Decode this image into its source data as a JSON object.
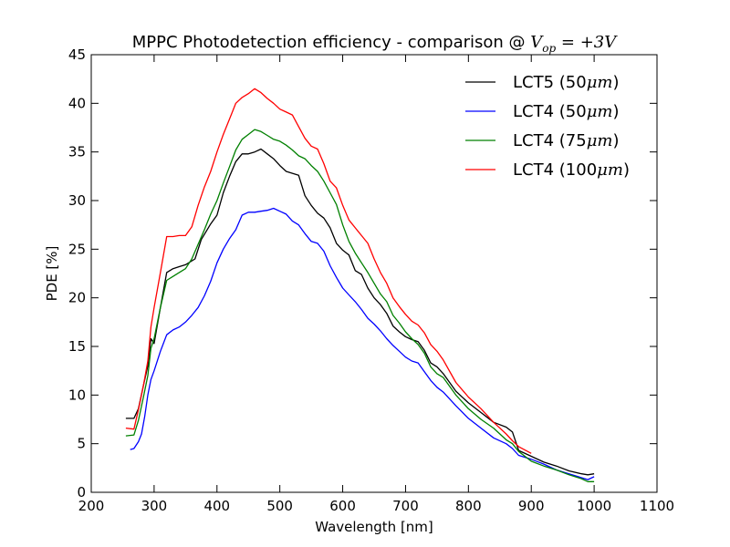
{
  "chart_data": {
    "type": "line",
    "title": {
      "prefix": "MPPC Photodetection efficiency - comparison @ ",
      "math": "V",
      "math_sub": "op",
      "suffix": " = +3V"
    },
    "xlabel": "Wavelength [nm]",
    "ylabel": "PDE [%]",
    "xlim": [
      200,
      1100
    ],
    "ylim": [
      0,
      45
    ],
    "xticks": [
      200,
      300,
      400,
      500,
      600,
      700,
      800,
      900,
      1000,
      1100
    ],
    "yticks": [
      0,
      5,
      10,
      15,
      20,
      25,
      30,
      35,
      40,
      45
    ],
    "grid": false,
    "legend_position": "top-right",
    "series": [
      {
        "name": "LCT5 (50μm)",
        "legend_prefix": "LCT5 (50",
        "legend_math": "μm",
        "legend_suffix": ")",
        "color": "#000000",
        "x": [
          255,
          268,
          275,
          283,
          290,
          295,
          300,
          310,
          320,
          330,
          340,
          350,
          365,
          375,
          390,
          400,
          410,
          420,
          430,
          440,
          450,
          460,
          470,
          480,
          490,
          500,
          510,
          520,
          530,
          540,
          550,
          560,
          570,
          580,
          590,
          600,
          610,
          620,
          630,
          640,
          650,
          660,
          670,
          680,
          690,
          700,
          710,
          720,
          730,
          740,
          750,
          760,
          780,
          800,
          820,
          840,
          860,
          870,
          880,
          900,
          920,
          940,
          960,
          980,
          990,
          1000
        ],
        "values": [
          7.6,
          7.6,
          8.6,
          11.0,
          13.0,
          15.8,
          15.3,
          19.0,
          22.6,
          23.0,
          23.2,
          23.4,
          24.0,
          26.0,
          27.6,
          28.5,
          30.8,
          32.5,
          34.0,
          34.8,
          34.8,
          35.0,
          35.3,
          34.8,
          34.3,
          33.6,
          33.0,
          32.8,
          32.6,
          30.5,
          29.5,
          28.7,
          28.2,
          27.2,
          25.6,
          24.9,
          24.4,
          22.8,
          22.4,
          21.0,
          20.0,
          19.3,
          18.4,
          17.1,
          16.5,
          16.0,
          15.7,
          15.5,
          14.6,
          13.3,
          12.9,
          12.2,
          10.4,
          9.2,
          8.2,
          7.2,
          6.7,
          6.2,
          4.3,
          3.7,
          3.1,
          2.7,
          2.2,
          1.9,
          1.8,
          1.9
        ]
      },
      {
        "name": "LCT4 (50μm)",
        "legend_prefix": "LCT4 (50",
        "legend_math": "μm",
        "legend_suffix": ")",
        "color": "#0000ff",
        "x": [
          262,
          268,
          275,
          280,
          285,
          290,
          295,
          300,
          310,
          320,
          330,
          340,
          350,
          360,
          370,
          380,
          390,
          400,
          410,
          420,
          430,
          440,
          450,
          460,
          470,
          480,
          490,
          500,
          510,
          520,
          530,
          540,
          550,
          560,
          570,
          580,
          590,
          600,
          610,
          620,
          630,
          640,
          650,
          660,
          670,
          680,
          690,
          700,
          710,
          720,
          730,
          740,
          750,
          760,
          780,
          800,
          820,
          840,
          860,
          870,
          880,
          900,
          920,
          940,
          960,
          980,
          990,
          1000
        ],
        "values": [
          4.4,
          4.5,
          5.2,
          6.0,
          7.8,
          10.0,
          11.6,
          12.5,
          14.5,
          16.2,
          16.7,
          17.0,
          17.5,
          18.2,
          19.0,
          20.2,
          21.7,
          23.6,
          25.0,
          26.1,
          27.0,
          28.5,
          28.8,
          28.8,
          28.9,
          29.0,
          29.2,
          28.9,
          28.6,
          27.9,
          27.5,
          26.6,
          25.8,
          25.6,
          24.8,
          23.3,
          22.1,
          21.0,
          20.3,
          19.6,
          18.8,
          17.9,
          17.3,
          16.6,
          15.8,
          15.1,
          14.5,
          13.9,
          13.5,
          13.3,
          12.4,
          11.5,
          10.8,
          10.3,
          8.9,
          7.6,
          6.6,
          5.6,
          5.0,
          4.5,
          3.8,
          3.4,
          2.9,
          2.3,
          1.9,
          1.5,
          1.3,
          1.6
        ]
      },
      {
        "name": "LCT4 (75μm)",
        "legend_prefix": "LCT4 (75",
        "legend_math": "μm",
        "legend_suffix": ")",
        "color": "#008000",
        "x": [
          255,
          268,
          275,
          283,
          290,
          295,
          300,
          310,
          320,
          330,
          340,
          350,
          360,
          370,
          380,
          390,
          400,
          410,
          420,
          430,
          440,
          450,
          460,
          470,
          480,
          490,
          500,
          510,
          520,
          530,
          540,
          550,
          560,
          570,
          580,
          590,
          600,
          610,
          620,
          630,
          640,
          650,
          660,
          670,
          680,
          690,
          700,
          710,
          720,
          730,
          740,
          750,
          760,
          780,
          800,
          820,
          840,
          860,
          870,
          880,
          900,
          920,
          940,
          960,
          980,
          990,
          1000
        ],
        "values": [
          5.8,
          5.9,
          7.4,
          9.8,
          12.0,
          14.8,
          15.8,
          19.0,
          21.8,
          22.2,
          22.6,
          23.0,
          24.0,
          25.5,
          27.0,
          28.6,
          30.0,
          31.8,
          33.5,
          35.2,
          36.3,
          36.8,
          37.3,
          37.1,
          36.7,
          36.3,
          36.1,
          35.7,
          35.2,
          34.6,
          34.3,
          33.6,
          33.0,
          32.0,
          30.8,
          29.6,
          27.5,
          25.8,
          24.6,
          23.6,
          22.6,
          21.5,
          20.4,
          19.6,
          18.2,
          17.4,
          16.5,
          15.8,
          15.2,
          14.3,
          12.9,
          12.2,
          11.8,
          10.0,
          8.6,
          7.5,
          6.6,
          5.4,
          5.0,
          4.2,
          3.2,
          2.7,
          2.3,
          1.8,
          1.4,
          1.1,
          1.1
        ]
      },
      {
        "name": "LCT4 (100μm)",
        "legend_prefix": "LCT4 (100",
        "legend_math": "μm",
        "legend_suffix": ")",
        "color": "#ff0000",
        "x": [
          255,
          268,
          275,
          283,
          290,
          295,
          300,
          310,
          320,
          330,
          340,
          350,
          360,
          370,
          380,
          390,
          400,
          410,
          420,
          430,
          440,
          450,
          460,
          470,
          480,
          490,
          500,
          510,
          520,
          530,
          540,
          550,
          560,
          570,
          580,
          590,
          600,
          610,
          620,
          630,
          640,
          650,
          660,
          670,
          680,
          690,
          700,
          710,
          720,
          730,
          740,
          750,
          760,
          780,
          800,
          820,
          840,
          860,
          870,
          880,
          900
        ],
        "values": [
          6.6,
          6.5,
          8.5,
          11.0,
          13.5,
          17.0,
          19.0,
          22.6,
          26.3,
          26.3,
          26.4,
          26.4,
          27.3,
          29.5,
          31.4,
          33.0,
          35.0,
          36.8,
          38.4,
          40.0,
          40.6,
          41.0,
          41.5,
          41.1,
          40.5,
          40.0,
          39.4,
          39.1,
          38.8,
          37.6,
          36.4,
          35.6,
          35.3,
          33.8,
          32.0,
          31.3,
          29.5,
          28.0,
          27.2,
          26.4,
          25.6,
          24.0,
          22.6,
          21.5,
          20.0,
          19.1,
          18.3,
          17.6,
          17.2,
          16.4,
          15.2,
          14.5,
          13.6,
          11.3,
          9.8,
          8.6,
          7.2,
          6.0,
          5.3,
          4.7,
          4.0
        ]
      }
    ]
  }
}
